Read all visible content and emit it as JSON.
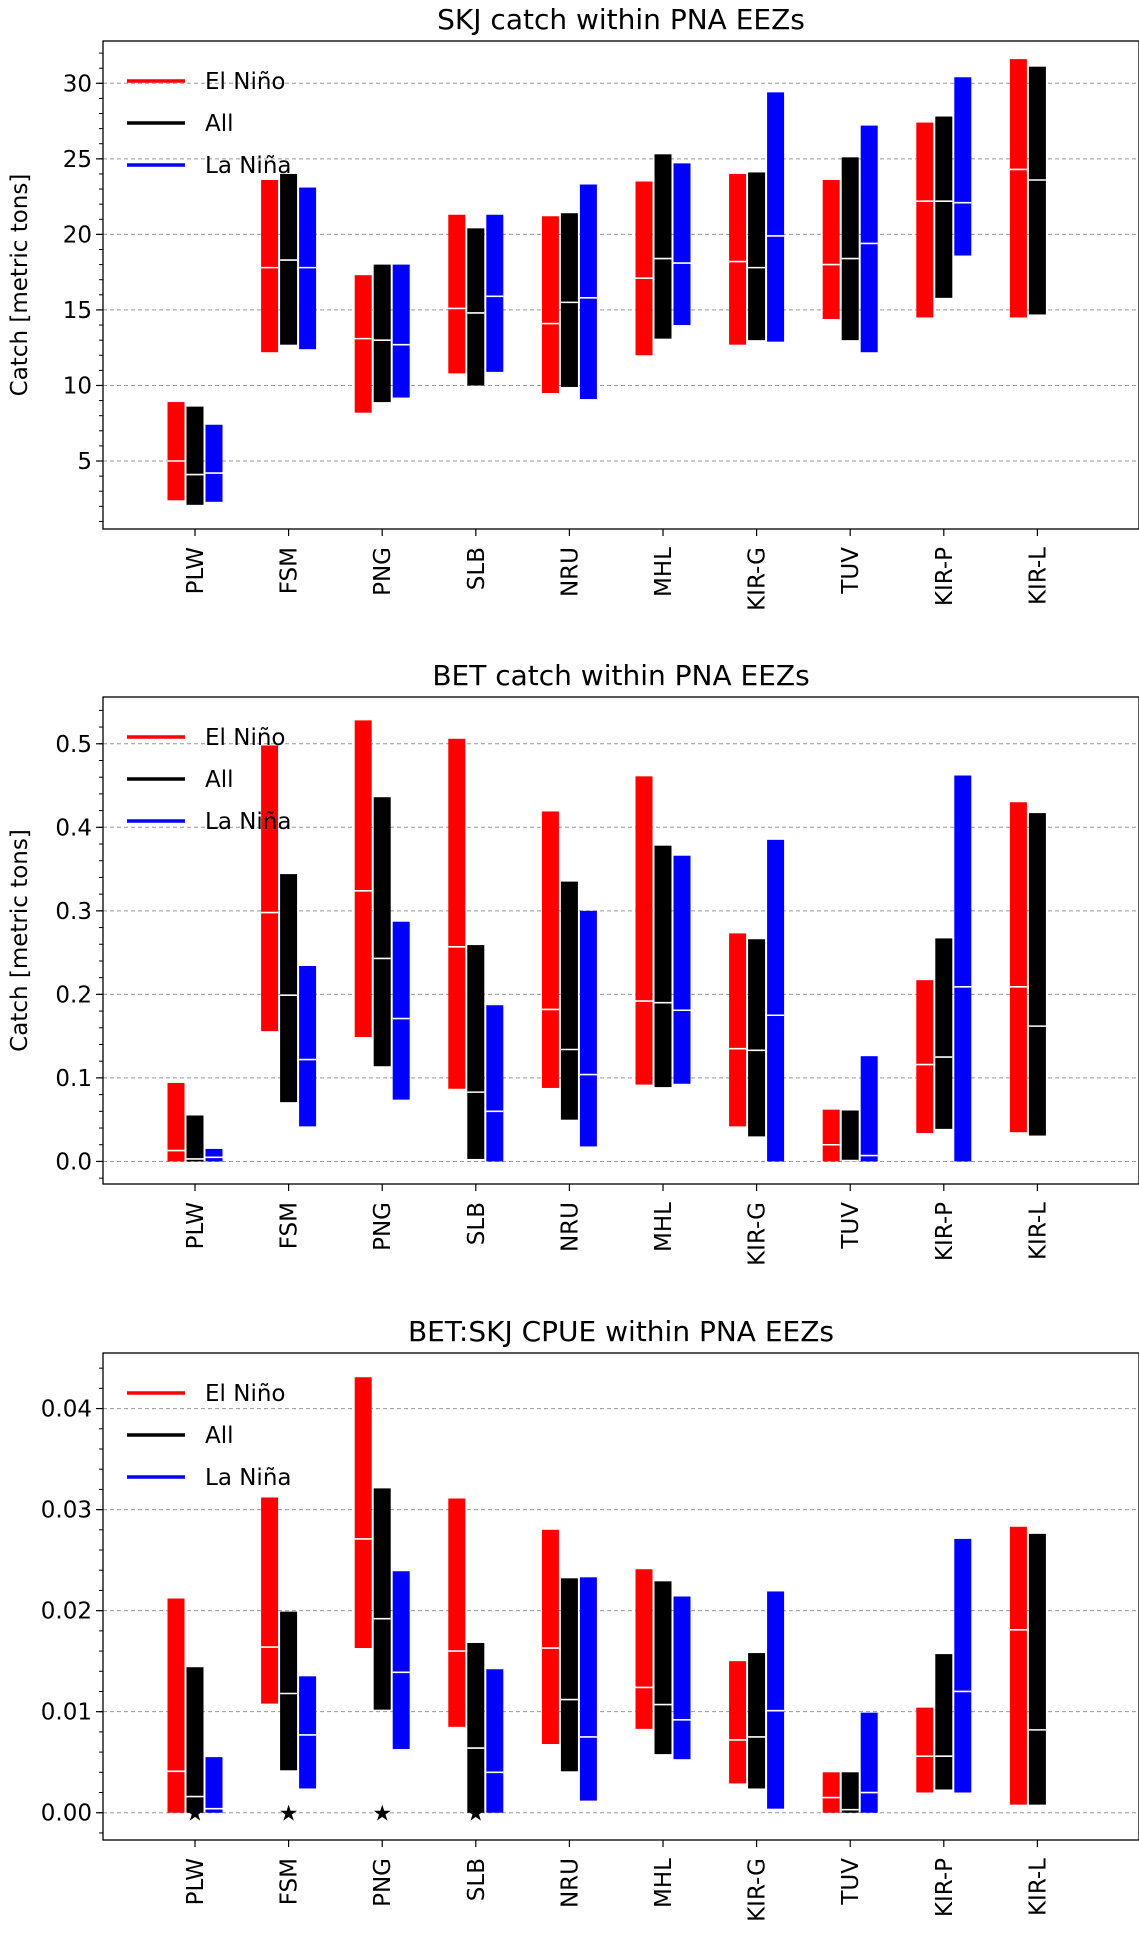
{
  "chart_data": [
    {
      "type": "range-bar",
      "title": "SKJ catch within PNA EEZs",
      "ylabel": "Catch [metric tons]",
      "xlabel": "",
      "categories": [
        "PLW",
        "FSM",
        "PNG",
        "SLB",
        "NRU",
        "MHL",
        "KIR-G",
        "TUV",
        "KIR-P",
        "KIR-L"
      ],
      "ylim": [
        0.5,
        32.8
      ],
      "yticks": [
        5,
        10,
        15,
        20,
        25,
        30
      ],
      "ytick_labels": [
        "5",
        "10",
        "15",
        "20",
        "25",
        "30"
      ],
      "grid": "horizontal dashed",
      "legend_position": "top-left",
      "series": [
        {
          "name": "El Niño",
          "color": "#ff0000",
          "low": [
            2.4,
            12.2,
            8.2,
            10.8,
            9.5,
            12.0,
            12.7,
            14.4,
            14.5,
            14.5
          ],
          "high": [
            8.9,
            23.6,
            17.3,
            21.3,
            21.2,
            23.5,
            24.0,
            23.6,
            27.4,
            31.6
          ],
          "median": [
            5.0,
            17.8,
            13.1,
            15.1,
            14.1,
            17.1,
            18.2,
            18.0,
            22.2,
            24.3
          ]
        },
        {
          "name": "All",
          "color": "#000000",
          "low": [
            2.1,
            12.7,
            8.9,
            10.0,
            9.9,
            13.1,
            13.0,
            13.0,
            15.8,
            14.7
          ],
          "high": [
            8.6,
            24.0,
            18.0,
            20.4,
            21.4,
            25.3,
            24.1,
            25.1,
            27.8,
            31.1
          ],
          "median": [
            4.1,
            18.3,
            13.0,
            14.8,
            15.5,
            18.4,
            17.8,
            18.4,
            22.2,
            23.6
          ]
        },
        {
          "name": "La Niña",
          "color": "#0000ff",
          "low": [
            2.3,
            12.4,
            9.2,
            10.9,
            9.1,
            14.0,
            12.9,
            12.2,
            18.6,
            null
          ],
          "high": [
            7.4,
            23.1,
            18.0,
            21.3,
            23.3,
            24.7,
            29.4,
            27.2,
            30.4,
            null
          ],
          "median": [
            4.2,
            17.8,
            12.7,
            15.9,
            15.8,
            18.1,
            19.9,
            19.4,
            22.1,
            null
          ]
        }
      ],
      "markers": []
    },
    {
      "type": "range-bar",
      "title": "BET catch within PNA EEZs",
      "ylabel": "Catch [metric tons]",
      "xlabel": "",
      "categories": [
        "PLW",
        "FSM",
        "PNG",
        "SLB",
        "NRU",
        "MHL",
        "KIR-G",
        "TUV",
        "KIR-P",
        "KIR-L"
      ],
      "ylim": [
        -0.027,
        0.556
      ],
      "yticks": [
        0.0,
        0.1,
        0.2,
        0.3,
        0.4,
        0.5
      ],
      "ytick_labels": [
        "0.0",
        "0.1",
        "0.2",
        "0.3",
        "0.4",
        "0.5"
      ],
      "grid": "horizontal dashed",
      "legend_position": "top-left",
      "series": [
        {
          "name": "El Niño",
          "color": "#ff0000",
          "low": [
            0.0,
            0.156,
            0.149,
            0.087,
            0.088,
            0.092,
            0.042,
            0.0,
            0.034,
            0.035
          ],
          "high": [
            0.094,
            0.498,
            0.528,
            0.506,
            0.419,
            0.461,
            0.273,
            0.062,
            0.217,
            0.43
          ],
          "median": [
            0.013,
            0.298,
            0.324,
            0.257,
            0.182,
            0.192,
            0.135,
            0.02,
            0.116,
            0.209
          ]
        },
        {
          "name": "All",
          "color": "#000000",
          "low": [
            0.0,
            0.071,
            0.114,
            0.003,
            0.05,
            0.089,
            0.03,
            0.0,
            0.039,
            0.031
          ],
          "high": [
            0.055,
            0.344,
            0.436,
            0.259,
            0.335,
            0.378,
            0.266,
            0.061,
            0.267,
            0.417
          ],
          "median": [
            0.003,
            0.199,
            0.243,
            0.083,
            0.134,
            0.19,
            0.133,
            0.001,
            0.125,
            0.162
          ]
        },
        {
          "name": "La Niña",
          "color": "#0000ff",
          "low": [
            0.0,
            0.042,
            0.074,
            0.0,
            0.018,
            0.093,
            0.0,
            0.0,
            0.0,
            null
          ],
          "high": [
            0.015,
            0.234,
            0.287,
            0.187,
            0.3,
            0.366,
            0.385,
            0.126,
            0.462,
            null
          ],
          "median": [
            0.005,
            0.122,
            0.171,
            0.06,
            0.104,
            0.181,
            0.175,
            0.007,
            0.209,
            null
          ]
        }
      ],
      "markers": []
    },
    {
      "type": "range-bar",
      "title": "BET:SKJ CPUE within PNA EEZs",
      "ylabel": "",
      "xlabel": "",
      "categories": [
        "PLW",
        "FSM",
        "PNG",
        "SLB",
        "NRU",
        "MHL",
        "KIR-G",
        "TUV",
        "KIR-P",
        "KIR-L"
      ],
      "ylim": [
        -0.0027,
        0.0455
      ],
      "yticks": [
        0.0,
        0.01,
        0.02,
        0.03,
        0.04
      ],
      "ytick_labels": [
        "0.00",
        "0.01",
        "0.02",
        "0.03",
        "0.04"
      ],
      "grid": "horizontal dashed",
      "legend_position": "top-left",
      "series": [
        {
          "name": "El Niño",
          "color": "#ff0000",
          "low": [
            0.0,
            0.0108,
            0.0163,
            0.0085,
            0.0068,
            0.0083,
            0.0029,
            0.0,
            0.002,
            0.0008
          ],
          "high": [
            0.0212,
            0.0312,
            0.0431,
            0.0311,
            0.028,
            0.0241,
            0.015,
            0.004,
            0.0104,
            0.0283
          ],
          "median": [
            0.0041,
            0.0164,
            0.0271,
            0.016,
            0.0163,
            0.0124,
            0.0072,
            0.0015,
            0.0056,
            0.0181
          ]
        },
        {
          "name": "All",
          "color": "#000000",
          "low": [
            0.0,
            0.0042,
            0.0102,
            0.0,
            0.0041,
            0.0058,
            0.0024,
            0.0,
            0.0023,
            0.0008
          ],
          "high": [
            0.0144,
            0.0199,
            0.0321,
            0.0168,
            0.0232,
            0.0229,
            0.0158,
            0.004,
            0.0157,
            0.0276
          ],
          "median": [
            0.0016,
            0.0118,
            0.0192,
            0.0064,
            0.0112,
            0.0107,
            0.0075,
            0.0003,
            0.0056,
            0.0082
          ]
        },
        {
          "name": "La Niña",
          "color": "#0000ff",
          "low": [
            0.0,
            0.0024,
            0.0063,
            0.0,
            0.0012,
            0.0053,
            0.0004,
            0.0,
            0.002,
            null
          ],
          "high": [
            0.0055,
            0.0135,
            0.0239,
            0.0142,
            0.0233,
            0.0214,
            0.0219,
            0.0099,
            0.0271,
            null
          ],
          "median": [
            0.0004,
            0.0077,
            0.0139,
            0.004,
            0.0075,
            0.0092,
            0.0101,
            0.002,
            0.012,
            null
          ]
        }
      ],
      "markers": [
        {
          "category": "PLW",
          "value": 0.0,
          "symbol": "★"
        },
        {
          "category": "FSM",
          "value": 0.0,
          "symbol": "★"
        },
        {
          "category": "PNG",
          "value": 0.0,
          "symbol": "★"
        },
        {
          "category": "SLB",
          "value": 0.0,
          "symbol": "★"
        }
      ]
    }
  ]
}
